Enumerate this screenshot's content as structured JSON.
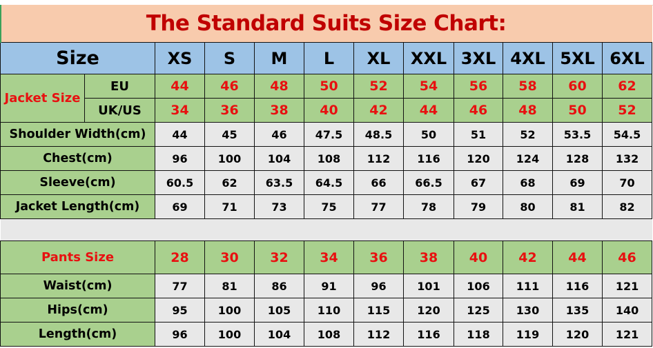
{
  "title": "The Standard Suits Size Chart:",
  "header": {
    "label": "Size",
    "sizes": [
      "XS",
      "S",
      "M",
      "L",
      "XL",
      "XXL",
      "3XL",
      "4XL",
      "5XL",
      "6XL"
    ]
  },
  "jacket_size": {
    "label": "Jacket Size",
    "rows": [
      {
        "label": "EU",
        "values": [
          "44",
          "46",
          "48",
          "50",
          "52",
          "54",
          "56",
          "58",
          "60",
          "62"
        ]
      },
      {
        "label": "UK/US",
        "values": [
          "34",
          "36",
          "38",
          "40",
          "42",
          "44",
          "46",
          "48",
          "50",
          "52"
        ]
      }
    ]
  },
  "jacket_measurements": [
    {
      "label": "Shoulder Width(cm)",
      "values": [
        "44",
        "45",
        "46",
        "47.5",
        "48.5",
        "50",
        "51",
        "52",
        "53.5",
        "54.5"
      ]
    },
    {
      "label": "Chest(cm)",
      "values": [
        "96",
        "100",
        "104",
        "108",
        "112",
        "116",
        "120",
        "124",
        "128",
        "132"
      ]
    },
    {
      "label": "Sleeve(cm)",
      "values": [
        "60.5",
        "62",
        "63.5",
        "64.5",
        "66",
        "66.5",
        "67",
        "68",
        "69",
        "70"
      ]
    },
    {
      "label": "Jacket Length(cm)",
      "values": [
        "69",
        "71",
        "73",
        "75",
        "77",
        "78",
        "79",
        "80",
        "81",
        "82"
      ]
    }
  ],
  "pants_size": {
    "label": "Pants Size",
    "values": [
      "28",
      "30",
      "32",
      "34",
      "36",
      "38",
      "40",
      "42",
      "44",
      "46"
    ]
  },
  "pants_measurements": [
    {
      "label": "Waist(cm)",
      "values": [
        "77",
        "81",
        "86",
        "91",
        "96",
        "101",
        "106",
        "111",
        "116",
        "121"
      ]
    },
    {
      "label": "Hips(cm)",
      "values": [
        "95",
        "100",
        "105",
        "110",
        "115",
        "120",
        "125",
        "130",
        "135",
        "140"
      ]
    },
    {
      "label": "Length(cm)",
      "values": [
        "96",
        "100",
        "104",
        "108",
        "112",
        "116",
        "118",
        "119",
        "120",
        "121"
      ]
    }
  ],
  "colors": {
    "title_bg": "#f8cbad",
    "title_text": "#c00000",
    "header_bg": "#9dc3e6",
    "label_bg": "#a9d08e",
    "cell_bg": "#e8e8e8",
    "size_text": "#e81010"
  }
}
